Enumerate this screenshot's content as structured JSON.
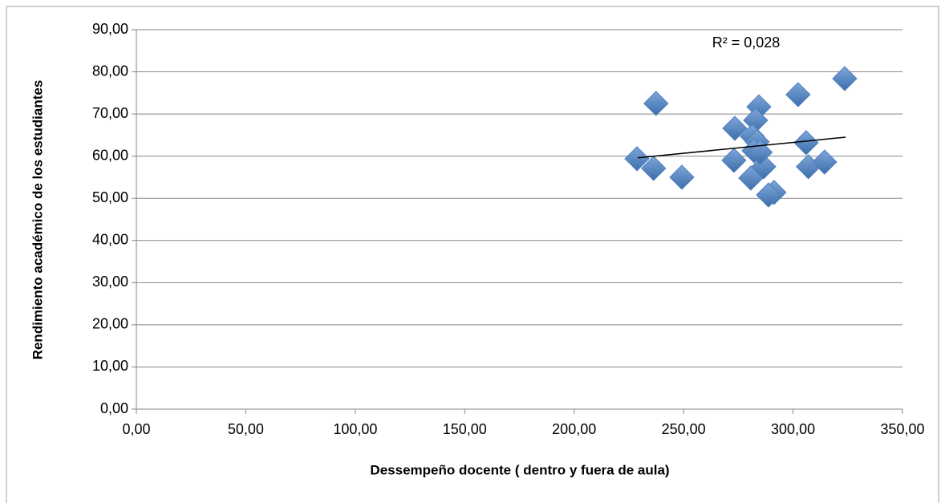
{
  "chart_data": {
    "type": "scatter",
    "x_label": "Dessempeño docente ( dentro y fuera de aula)",
    "y_label": "Rendimiento académico de los estudiantes",
    "annotation": "R² = 0,028",
    "color": "#4f81bd",
    "grid": true,
    "xlim": [
      0,
      350
    ],
    "ylim": [
      0,
      90
    ],
    "xticks": [
      {
        "value": 0,
        "label": "0,00"
      },
      {
        "value": 50,
        "label": "50,00"
      },
      {
        "value": 100,
        "label": "100,00"
      },
      {
        "value": 150,
        "label": "150,00"
      },
      {
        "value": 200,
        "label": "200,00"
      },
      {
        "value": 250,
        "label": "250,00"
      },
      {
        "value": 300,
        "label": "300,00"
      },
      {
        "value": 350,
        "label": "350,00"
      }
    ],
    "yticks": [
      {
        "value": 0,
        "label": "0,00"
      },
      {
        "value": 10,
        "label": "10,00"
      },
      {
        "value": 20,
        "label": "20,00"
      },
      {
        "value": 30,
        "label": "30,00"
      },
      {
        "value": 40,
        "label": "40,00"
      },
      {
        "value": 50,
        "label": "50,00"
      },
      {
        "value": 60,
        "label": "60,00"
      },
      {
        "value": 70,
        "label": "70,00"
      },
      {
        "value": 80,
        "label": "80,00"
      },
      {
        "value": 90,
        "label": "90,00"
      }
    ],
    "x": [
      228.7,
      236.3,
      237.4,
      249.2,
      273.4,
      273.0,
      284.4,
      282.9,
      281.4,
      283.6,
      282.2,
      280.7,
      286.6,
      291.3,
      288.8,
      302.3,
      306.0,
      307.0,
      314.4,
      323.6,
      285.0
    ],
    "values": [
      59.4,
      57.1,
      72.5,
      55.0,
      66.6,
      59.0,
      71.7,
      68.5,
      64.7,
      63.4,
      61.3,
      54.8,
      57.5,
      51.4,
      50.8,
      74.6,
      63.2,
      57.5,
      58.6,
      78.4,
      60.9
    ],
    "trendline": {
      "x": [
        229,
        324
      ],
      "values": [
        59.6,
        64.5
      ],
      "color": "#000000"
    }
  }
}
